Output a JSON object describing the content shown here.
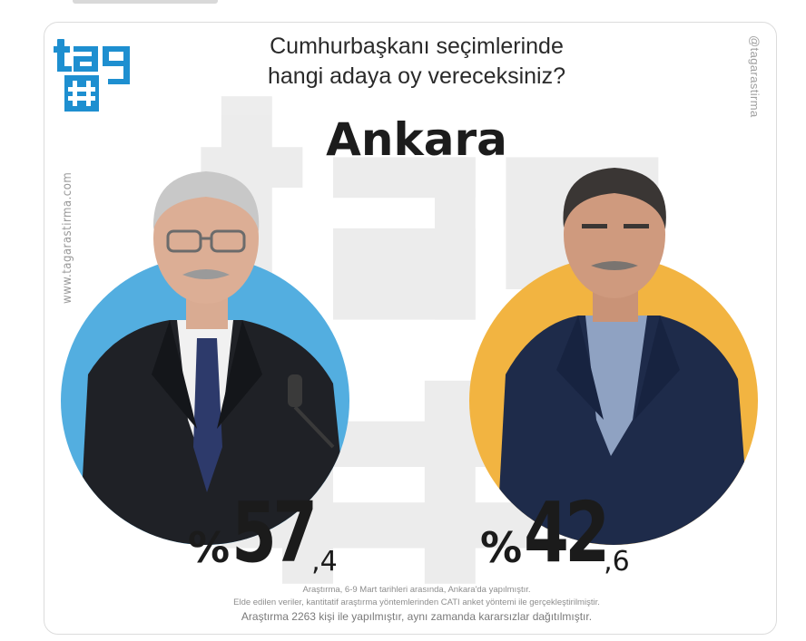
{
  "logo": {
    "text": "tag",
    "symbol": "#",
    "color": "#1e8fd0"
  },
  "watermarks": {
    "website": "www.tagarastirma.com",
    "handle": "@tagarastirma"
  },
  "header": {
    "question_line1": "Cumhurbaşkanı seçimlerinde",
    "question_line2": "hangi adaya oy vereceksiniz?",
    "city": "Ankara"
  },
  "candidates": [
    {
      "percent_symbol": "%",
      "whole": "57",
      "decimal": ",4",
      "circle_color": "#53aee0",
      "share": 57.4
    },
    {
      "percent_symbol": "%",
      "whole": "42",
      "decimal": ",6",
      "circle_color": "#f2b441",
      "share": 42.6
    }
  ],
  "footnotes": {
    "line1": "Araştırma, 6-9 Mart tarihleri arasında, Ankara'da yapılmıştır.",
    "line2": "Elde edilen veriler, kantitatif araştırma yöntemlerinden CATI anket yöntemi ile gerçekleştirilmiştir.",
    "line3": "Araştırma 2263 kişi ile yapılmıştır, aynı zamanda kararsızlar dağıtılmıştır."
  }
}
